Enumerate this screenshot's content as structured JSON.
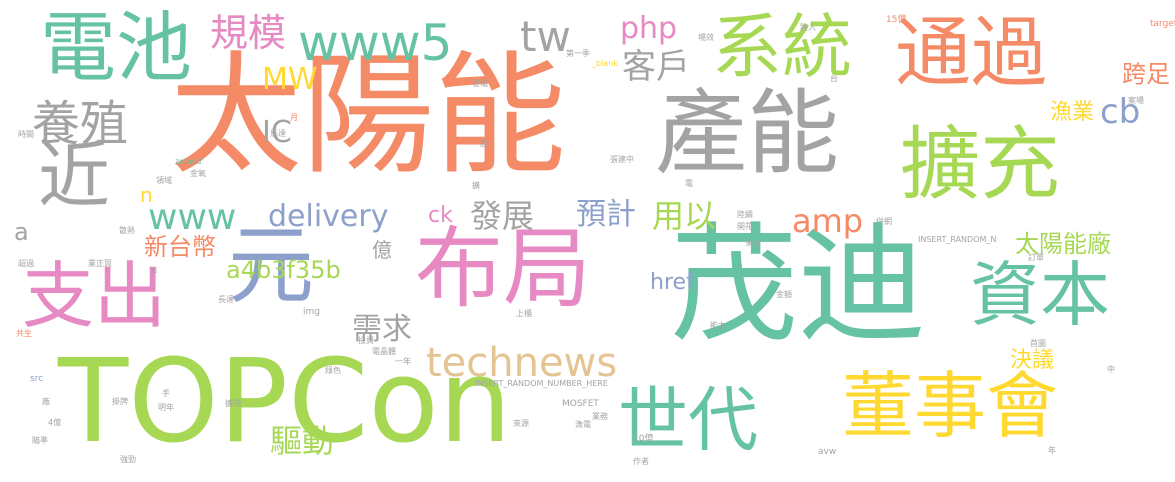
{
  "palette": {
    "orange": "#f58a66",
    "teal": "#66c2a4",
    "green": "#a6d854",
    "gray": "#a3a3a3",
    "blue": "#8da0cb",
    "pink": "#e78ac3",
    "yellow": "#ffd92f",
    "tan": "#e5c494"
  },
  "words": [
    {
      "text": "太陽能",
      "color": "orange"
    },
    {
      "text": "茂迪",
      "color": "teal"
    },
    {
      "text": "TOPCon",
      "color": "green"
    },
    {
      "text": "布局",
      "color": "pink"
    },
    {
      "text": "產能",
      "color": "gray"
    },
    {
      "text": "擴充",
      "color": "green"
    },
    {
      "text": "電池",
      "color": "teal"
    },
    {
      "text": "通過",
      "color": "orange"
    },
    {
      "text": "系統",
      "color": "green"
    },
    {
      "text": "資本",
      "color": "teal"
    },
    {
      "text": "董事會",
      "color": "yellow"
    },
    {
      "text": "世代",
      "color": "teal"
    },
    {
      "text": "支出",
      "color": "pink"
    },
    {
      "text": "元",
      "color": "blue"
    },
    {
      "text": "近",
      "color": "gray"
    },
    {
      "text": "www5",
      "color": "teal"
    },
    {
      "text": "養殖",
      "color": "gray"
    },
    {
      "text": "technews",
      "color": "tan"
    },
    {
      "text": "www",
      "color": "teal"
    },
    {
      "text": "delivery",
      "color": "blue"
    },
    {
      "text": "tw",
      "color": "gray"
    },
    {
      "text": "規模",
      "color": "pink"
    },
    {
      "text": "php",
      "color": "pink"
    },
    {
      "text": "客戶",
      "color": "gray"
    },
    {
      "text": "MW",
      "color": "yellow"
    },
    {
      "text": "IC",
      "color": "gray"
    },
    {
      "text": "amp",
      "color": "orange"
    },
    {
      "text": "cb",
      "color": "blue"
    },
    {
      "text": "需求",
      "color": "gray"
    },
    {
      "text": "驅動",
      "color": "green"
    },
    {
      "text": "發展",
      "color": "gray"
    },
    {
      "text": "預計",
      "color": "blue"
    },
    {
      "text": "用以",
      "color": "green"
    },
    {
      "text": "a4b3f35b",
      "color": "green"
    },
    {
      "text": "新台幣",
      "color": "orange"
    },
    {
      "text": "太陽能廠",
      "color": "green"
    },
    {
      "text": "跨足",
      "color": "orange"
    },
    {
      "text": "漁業",
      "color": "yellow"
    },
    {
      "text": "href",
      "color": "blue"
    },
    {
      "text": "決議",
      "color": "yellow"
    },
    {
      "text": "ck",
      "color": "pink"
    },
    {
      "text": "億",
      "color": "gray"
    },
    {
      "text": "a",
      "color": "gray"
    },
    {
      "text": "n",
      "color": "yellow"
    },
    {
      "text": "INSERT_RANDOM_NUMBER_HERE",
      "color": "gray"
    },
    {
      "text": "INSERT_RANDOM_N",
      "color": "gray"
    },
    {
      "text": "MOSFET",
      "color": "gray"
    },
    {
      "text": "zoneid",
      "color": "teal"
    },
    {
      "text": "_blank",
      "color": "yellow"
    },
    {
      "text": "target",
      "color": "orange"
    },
    {
      "text": "img",
      "color": "gray"
    },
    {
      "text": "src",
      "color": "blue"
    },
    {
      "text": "avw",
      "color": "gray"
    },
    {
      "text": "15億",
      "color": "orange"
    },
    {
      "text": "10億",
      "color": "gray"
    },
    {
      "text": "一年",
      "color": "gray"
    },
    {
      "text": "第一季",
      "color": "gray"
    },
    {
      "text": "發電",
      "color": "gray"
    },
    {
      "text": "跨入",
      "color": "gray"
    },
    {
      "text": "場效",
      "color": "gray"
    },
    {
      "text": "電",
      "color": "gray"
    },
    {
      "text": "案場",
      "color": "gray"
    },
    {
      "text": "時間",
      "color": "gray"
    },
    {
      "text": "月",
      "color": "orange"
    },
    {
      "text": "馬達",
      "color": "gray"
    },
    {
      "text": "投資",
      "color": "gray"
    },
    {
      "text": "設",
      "color": "gray"
    },
    {
      "text": "領域",
      "color": "gray"
    },
    {
      "text": "金氧",
      "color": "gray"
    },
    {
      "text": "張建中",
      "color": "gray"
    },
    {
      "text": "擴",
      "color": "gray"
    },
    {
      "text": "散熱",
      "color": "gray"
    },
    {
      "text": "陸續",
      "color": "gray"
    },
    {
      "text": "開花",
      "color": "gray"
    },
    {
      "text": "併網",
      "color": "gray"
    },
    {
      "text": "超過",
      "color": "gray"
    },
    {
      "text": "業正賀",
      "color": "gray"
    },
    {
      "text": "未來",
      "color": "gray"
    },
    {
      "text": "訂單",
      "color": "gray"
    },
    {
      "text": "半",
      "color": "gray"
    },
    {
      "text": "長達",
      "color": "gray"
    },
    {
      "text": "上櫃",
      "color": "gray"
    },
    {
      "text": "金額",
      "color": "gray"
    },
    {
      "text": "能力",
      "color": "gray"
    },
    {
      "text": "電晶體",
      "color": "gray"
    },
    {
      "text": "首圖",
      "color": "gray"
    },
    {
      "text": "共生",
      "color": "orange"
    },
    {
      "text": "綠色",
      "color": "gray"
    },
    {
      "text": "中",
      "color": "gray"
    },
    {
      "text": "廠",
      "color": "gray"
    },
    {
      "text": "掛牌",
      "color": "gray"
    },
    {
      "text": "明年",
      "color": "gray"
    },
    {
      "text": "擴問",
      "color": "gray"
    },
    {
      "text": "業務",
      "color": "gray"
    },
    {
      "text": "4億",
      "color": "gray"
    },
    {
      "text": "瞄準",
      "color": "gray"
    },
    {
      "text": "手",
      "color": "gray"
    },
    {
      "text": "來源",
      "color": "gray"
    },
    {
      "text": "漁電",
      "color": "gray"
    },
    {
      "text": "強勁",
      "color": "gray"
    },
    {
      "text": "作者",
      "color": "gray"
    },
    {
      "text": "年",
      "color": "gray"
    },
    {
      "text": "台",
      "color": "gray"
    }
  ]
}
